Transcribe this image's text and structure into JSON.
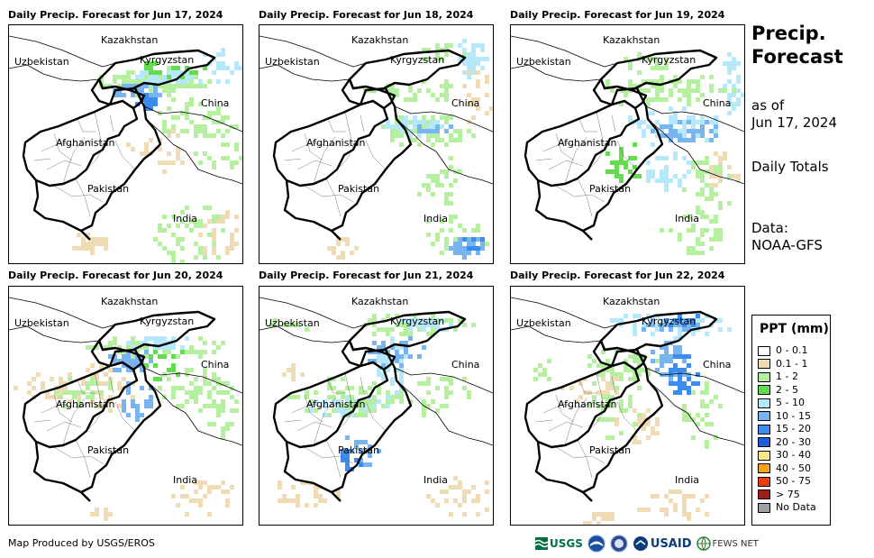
{
  "panels": [
    {
      "title": "Daily Precip. Forecast for Jun 17, 2024"
    },
    {
      "title": "Daily Precip. Forecast for Jun 18, 2024"
    },
    {
      "title": "Daily Precip. Forecast for Jun 19, 2024"
    },
    {
      "title": "Daily Precip. Forecast for Jun 20, 2024"
    },
    {
      "title": "Daily Precip. Forecast for Jun 21, 2024"
    },
    {
      "title": "Daily Precip. Forecast for Jun 22, 2024"
    }
  ],
  "map_labels": [
    "Kazakhstan",
    "Uzbekistan",
    "Kyrgyzstan",
    "China",
    "Afghanistan",
    "Pakistan",
    "India"
  ],
  "sidebar": {
    "title_line1": "Precip.",
    "title_line2": "Forecast",
    "asof_line1": "as of",
    "asof_line2": "Jun 17, 2024",
    "totals": "Daily Totals",
    "data_line1": "Data:",
    "data_line2": "NOAA-GFS"
  },
  "legend": {
    "title": "PPT (mm)",
    "items": [
      {
        "label": "0 - 0.1",
        "color": "#ffffff"
      },
      {
        "label": "0.1 - 1",
        "color": "#f0dcb4"
      },
      {
        "label": "1 - 2",
        "color": "#b4f0a0"
      },
      {
        "label": "2 - 5",
        "color": "#64dc50"
      },
      {
        "label": "5 - 10",
        "color": "#b4e8fa"
      },
      {
        "label": "10 - 15",
        "color": "#78b4f0"
      },
      {
        "label": "15 - 20",
        "color": "#3c8cf0"
      },
      {
        "label": "20 - 30",
        "color": "#1e5adc"
      },
      {
        "label": "30 - 40",
        "color": "#fae68c"
      },
      {
        "label": "40 - 50",
        "color": "#faa014"
      },
      {
        "label": "50 - 75",
        "color": "#f03c0a"
      },
      {
        "label": "> 75",
        "color": "#a01e1e"
      },
      {
        "label": "No Data",
        "color": "#a0a0a0"
      }
    ]
  },
  "footer": {
    "credit": "Map Produced by USGS/EROS"
  },
  "logos": {
    "usgs": "USGS",
    "usaid": "USAID",
    "fewsnet": "FEWS NET"
  }
}
